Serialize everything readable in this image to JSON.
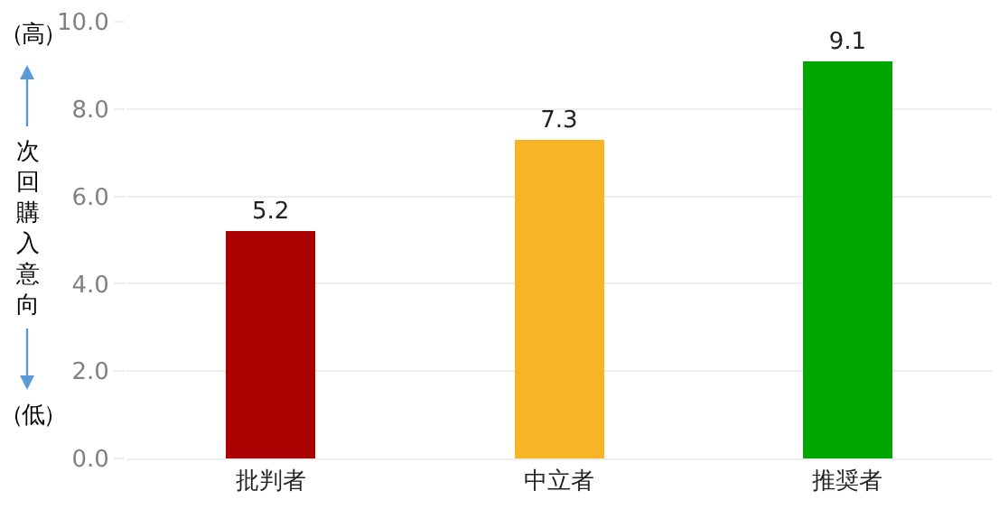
{
  "chart_data": {
    "type": "bar",
    "categories": [
      "批判者",
      "中立者",
      "推奨者"
    ],
    "values": [
      5.2,
      7.3,
      9.1
    ],
    "colors": [
      "#aa0000",
      "#f7b526",
      "#00a600"
    ],
    "ylabel": "次回購入意向",
    "annotations": [
      "（高）",
      "（低）"
    ],
    "ylim": [
      0,
      10
    ],
    "yticks": [
      {
        "value": 0,
        "label": "0.0"
      },
      {
        "value": 2,
        "label": "2.0"
      },
      {
        "value": 4,
        "label": "4.0"
      },
      {
        "value": 6,
        "label": "6.0"
      },
      {
        "value": 8,
        "label": "8.0"
      },
      {
        "value": 10,
        "label": "10.0"
      }
    ],
    "grid": "y",
    "data_labels": true
  }
}
